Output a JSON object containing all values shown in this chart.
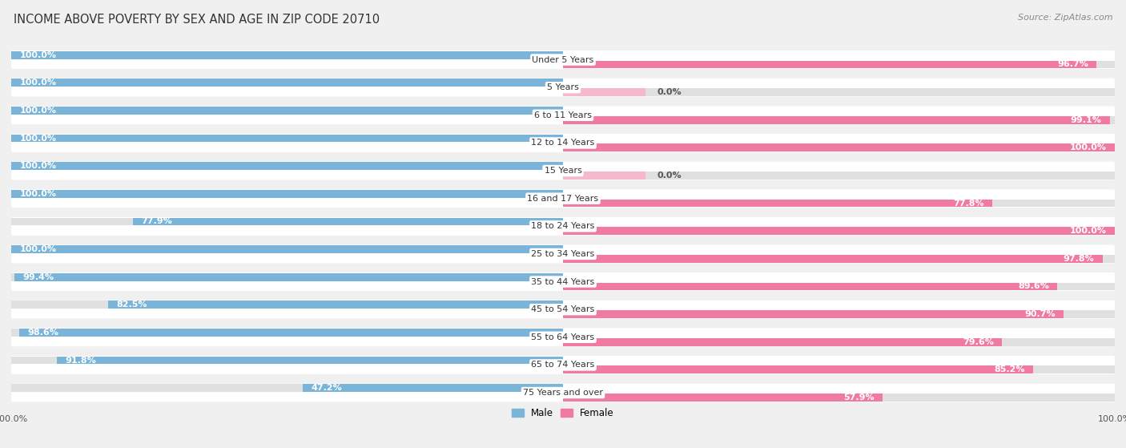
{
  "title": "INCOME ABOVE POVERTY BY SEX AND AGE IN ZIP CODE 20710",
  "source": "Source: ZipAtlas.com",
  "categories": [
    "Under 5 Years",
    "5 Years",
    "6 to 11 Years",
    "12 to 14 Years",
    "15 Years",
    "16 and 17 Years",
    "18 to 24 Years",
    "25 to 34 Years",
    "35 to 44 Years",
    "45 to 54 Years",
    "55 to 64 Years",
    "65 to 74 Years",
    "75 Years and over"
  ],
  "male_values": [
    100.0,
    100.0,
    100.0,
    100.0,
    100.0,
    100.0,
    77.9,
    100.0,
    99.4,
    82.5,
    98.6,
    91.8,
    47.2
  ],
  "female_values": [
    96.7,
    0.0,
    99.1,
    100.0,
    0.0,
    77.8,
    100.0,
    97.8,
    89.6,
    90.7,
    79.6,
    85.2,
    57.9
  ],
  "male_color": "#7ab4d8",
  "female_color": "#f07aa0",
  "female_light_color": "#f5b8cd",
  "background_color": "#f0f0f0",
  "bar_background": "#e0e0e0",
  "row_background": "#ffffff",
  "title_fontsize": 10.5,
  "label_fontsize": 8.0,
  "value_fontsize": 8.0,
  "tick_fontsize": 8,
  "source_fontsize": 8,
  "max_value": 100.0
}
